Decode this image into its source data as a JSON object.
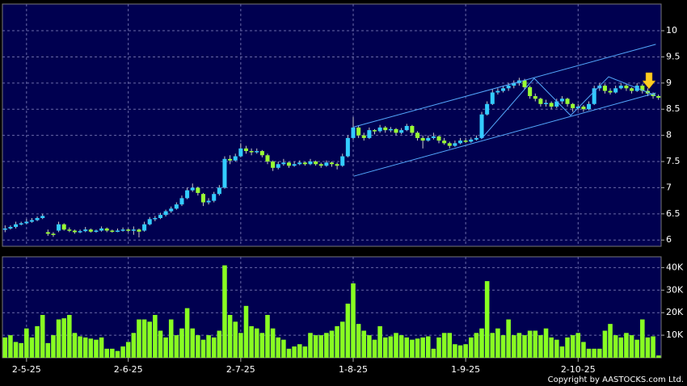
{
  "chart_data": [
    {
      "type": "candlestick",
      "categories": [
        null,
        null,
        null,
        null,
        "2-5-25",
        null,
        null,
        null,
        null,
        null,
        null,
        null,
        null,
        null,
        null,
        null,
        null,
        null,
        null,
        null,
        null,
        null,
        null,
        "2-6-25",
        null,
        null,
        null,
        null,
        null,
        null,
        null,
        null,
        null,
        null,
        null,
        null,
        null,
        null,
        null,
        null,
        null,
        null,
        null,
        null,
        "2-7-25",
        null,
        null,
        null,
        null,
        null,
        null,
        null,
        null,
        null,
        null,
        null,
        null,
        null,
        null,
        null,
        null,
        null,
        null,
        null,
        null,
        "1-8-25",
        null,
        null,
        null,
        null,
        null,
        null,
        null,
        null,
        null,
        null,
        null,
        null,
        null,
        null,
        null,
        null,
        null,
        null,
        null,
        null,
        "1-9-25",
        null,
        null,
        null,
        null,
        null,
        null,
        null,
        null,
        null,
        null,
        null,
        null,
        null,
        null,
        null,
        null,
        null,
        null,
        null,
        null,
        "2-10-25",
        null,
        null,
        null,
        null,
        null,
        null,
        null,
        null,
        null,
        null,
        null,
        null,
        null,
        null,
        null
      ],
      "candles": [
        [
          6.2,
          6.28,
          6.15,
          6.22
        ],
        [
          6.22,
          6.28,
          6.2,
          6.25
        ],
        [
          6.25,
          6.35,
          6.22,
          6.3
        ],
        [
          6.3,
          6.35,
          6.28,
          6.32
        ],
        [
          6.32,
          6.4,
          6.3,
          6.35
        ],
        [
          6.35,
          6.42,
          6.33,
          6.38
        ],
        [
          6.38,
          6.45,
          6.36,
          6.42
        ],
        [
          6.42,
          6.5,
          6.4,
          6.46
        ],
        [
          6.15,
          6.2,
          6.08,
          6.12
        ],
        [
          6.12,
          6.15,
          6.06,
          6.1
        ],
        [
          6.18,
          6.35,
          6.15,
          6.3
        ],
        [
          6.3,
          6.32,
          6.18,
          6.2
        ],
        [
          6.2,
          6.24,
          6.15,
          6.18
        ],
        [
          6.18,
          6.2,
          6.12,
          6.15
        ],
        [
          6.15,
          6.2,
          6.13,
          6.17
        ],
        [
          6.17,
          6.25,
          6.15,
          6.2
        ],
        [
          6.2,
          6.22,
          6.14,
          6.16
        ],
        [
          6.16,
          6.2,
          6.14,
          6.18
        ],
        [
          6.18,
          6.26,
          6.16,
          6.22
        ],
        [
          6.22,
          6.24,
          6.15,
          6.18
        ],
        [
          6.18,
          6.2,
          6.14,
          6.17
        ],
        [
          6.17,
          6.22,
          6.15,
          6.18
        ],
        [
          6.18,
          6.24,
          6.16,
          6.2
        ],
        [
          6.2,
          6.22,
          6.15,
          6.18
        ],
        [
          6.18,
          6.26,
          6.1,
          6.2
        ],
        [
          6.2,
          6.22,
          6.05,
          6.16
        ],
        [
          6.18,
          6.35,
          6.16,
          6.3
        ],
        [
          6.3,
          6.44,
          6.28,
          6.4
        ],
        [
          6.4,
          6.46,
          6.36,
          6.42
        ],
        [
          6.42,
          6.52,
          6.4,
          6.48
        ],
        [
          6.48,
          6.58,
          6.45,
          6.55
        ],
        [
          6.55,
          6.64,
          6.52,
          6.6
        ],
        [
          6.6,
          6.72,
          6.58,
          6.68
        ],
        [
          6.68,
          6.85,
          6.65,
          6.8
        ],
        [
          6.8,
          7.0,
          6.78,
          6.95
        ],
        [
          6.95,
          7.08,
          6.92,
          7.0
        ],
        [
          7.0,
          7.02,
          6.85,
          6.9
        ],
        [
          6.88,
          6.9,
          6.65,
          6.72
        ],
        [
          6.72,
          6.8,
          6.68,
          6.75
        ],
        [
          6.75,
          6.92,
          6.72,
          6.88
        ],
        [
          6.88,
          7.05,
          6.85,
          7.0
        ],
        [
          7.0,
          7.6,
          6.98,
          7.55
        ],
        [
          7.55,
          7.62,
          7.45,
          7.52
        ],
        [
          7.52,
          7.65,
          7.5,
          7.6
        ],
        [
          7.6,
          7.85,
          7.58,
          7.75
        ],
        [
          7.75,
          7.8,
          7.65,
          7.7
        ],
        [
          7.7,
          7.75,
          7.62,
          7.68
        ],
        [
          7.68,
          7.75,
          7.65,
          7.7
        ],
        [
          7.7,
          7.72,
          7.58,
          7.62
        ],
        [
          7.62,
          7.65,
          7.45,
          7.5
        ],
        [
          7.5,
          7.52,
          7.32,
          7.38
        ],
        [
          7.38,
          7.5,
          7.35,
          7.45
        ],
        [
          7.45,
          7.55,
          7.42,
          7.48
        ],
        [
          7.48,
          7.5,
          7.38,
          7.42
        ],
        [
          7.42,
          7.5,
          7.4,
          7.45
        ],
        [
          7.45,
          7.52,
          7.43,
          7.48
        ],
        [
          7.48,
          7.5,
          7.42,
          7.45
        ],
        [
          7.45,
          7.55,
          7.43,
          7.5
        ],
        [
          7.5,
          7.52,
          7.42,
          7.45
        ],
        [
          7.45,
          7.48,
          7.38,
          7.42
        ],
        [
          7.42,
          7.52,
          7.4,
          7.48
        ],
        [
          7.48,
          7.5,
          7.4,
          7.45
        ],
        [
          7.45,
          7.48,
          7.35,
          7.42
        ],
        [
          7.42,
          7.65,
          7.4,
          7.6
        ],
        [
          7.6,
          8.0,
          7.58,
          7.95
        ],
        [
          7.95,
          8.35,
          7.92,
          8.15
        ],
        [
          8.15,
          8.18,
          7.95,
          8.0
        ],
        [
          8.0,
          8.05,
          7.9,
          7.95
        ],
        [
          7.95,
          8.15,
          7.93,
          8.1
        ],
        [
          8.1,
          8.12,
          8.02,
          8.08
        ],
        [
          8.08,
          8.2,
          8.05,
          8.15
        ],
        [
          8.15,
          8.18,
          8.05,
          8.1
        ],
        [
          8.1,
          8.16,
          8.06,
          8.12
        ],
        [
          8.12,
          8.14,
          8.0,
          8.05
        ],
        [
          8.05,
          8.14,
          8.02,
          8.1
        ],
        [
          8.1,
          8.22,
          8.08,
          8.18
        ],
        [
          8.18,
          8.2,
          8.0,
          8.05
        ],
        [
          8.05,
          8.08,
          7.9,
          7.95
        ],
        [
          7.95,
          8.0,
          7.75,
          7.9
        ],
        [
          7.9,
          8.0,
          7.88,
          7.95
        ],
        [
          7.95,
          8.05,
          7.92,
          7.98
        ],
        [
          7.98,
          8.0,
          7.85,
          7.9
        ],
        [
          7.9,
          7.95,
          7.82,
          7.85
        ],
        [
          7.85,
          7.88,
          7.75,
          7.8
        ],
        [
          7.8,
          7.9,
          7.78,
          7.85
        ],
        [
          7.85,
          7.95,
          7.83,
          7.9
        ],
        [
          7.9,
          7.95,
          7.85,
          7.88
        ],
        [
          7.88,
          7.96,
          7.86,
          7.92
        ],
        [
          7.92,
          8.0,
          7.9,
          7.95
        ],
        [
          7.95,
          8.45,
          7.93,
          8.4
        ],
        [
          8.4,
          8.65,
          8.38,
          8.6
        ],
        [
          8.6,
          8.88,
          8.58,
          8.82
        ],
        [
          8.82,
          8.9,
          8.78,
          8.85
        ],
        [
          8.85,
          8.95,
          8.82,
          8.9
        ],
        [
          8.9,
          9.0,
          8.85,
          8.95
        ],
        [
          8.95,
          9.05,
          8.9,
          9.0
        ],
        [
          9.0,
          9.1,
          8.95,
          9.05
        ],
        [
          9.05,
          9.08,
          8.88,
          8.92
        ],
        [
          8.92,
          8.95,
          8.7,
          8.75
        ],
        [
          8.75,
          8.8,
          8.65,
          8.7
        ],
        [
          8.7,
          8.72,
          8.55,
          8.6
        ],
        [
          8.6,
          8.68,
          8.55,
          8.62
        ],
        [
          8.62,
          8.65,
          8.5,
          8.55
        ],
        [
          8.55,
          8.7,
          8.52,
          8.65
        ],
        [
          8.65,
          8.75,
          8.6,
          8.7
        ],
        [
          8.7,
          8.72,
          8.55,
          8.6
        ],
        [
          8.6,
          8.62,
          8.45,
          8.52
        ],
        [
          8.52,
          8.6,
          8.48,
          8.55
        ],
        [
          8.55,
          8.58,
          8.45,
          8.5
        ],
        [
          8.5,
          8.65,
          8.48,
          8.6
        ],
        [
          8.6,
          8.95,
          8.58,
          8.9
        ],
        [
          8.9,
          9.0,
          8.85,
          8.95
        ],
        [
          8.95,
          8.98,
          8.8,
          8.85
        ],
        [
          8.85,
          8.9,
          8.78,
          8.82
        ],
        [
          8.82,
          8.95,
          8.8,
          8.9
        ],
        [
          8.9,
          9.0,
          8.88,
          8.95
        ],
        [
          8.95,
          8.98,
          8.85,
          8.9
        ],
        [
          8.9,
          8.92,
          8.8,
          8.85
        ],
        [
          8.85,
          9.0,
          8.83,
          8.95
        ],
        [
          8.95,
          8.98,
          8.8,
          8.85
        ],
        [
          8.85,
          8.9,
          8.75,
          8.8
        ],
        [
          8.8,
          8.82,
          8.7,
          8.75
        ],
        [
          8.75,
          8.78,
          8.68,
          8.72
        ]
      ],
      "up_color": "#33ccff",
      "down_color": "#99ff33",
      "line_color": "#55aaff",
      "trendlines": [
        {
          "x": [
            65.1,
            121.5
          ],
          "y": [
            8.16,
            9.74
          ]
        },
        {
          "x": [
            65.1,
            121.5
          ],
          "y": [
            7.22,
            8.81
          ]
        },
        {
          "x": [
            88.9,
            98.8,
            105.6,
            112.7,
            121.5
          ],
          "y": [
            7.93,
            9.09,
            8.38,
            9.12,
            8.76
          ]
        }
      ],
      "ylim": [
        5.88,
        10.51
      ],
      "yticks": [
        6,
        6.5,
        7,
        7.5,
        8,
        8.5,
        9,
        9.5,
        10
      ],
      "grid": true
    },
    {
      "type": "bar",
      "values": [
        9000,
        10000,
        7000,
        6500,
        13000,
        9000,
        14000,
        19000,
        6500,
        10000,
        17000,
        17500,
        19000,
        11000,
        9500,
        9000,
        8500,
        8000,
        9000,
        4000,
        4000,
        3000,
        5000,
        7000,
        11000,
        17000,
        17000,
        16000,
        19000,
        12000,
        9000,
        17000,
        10000,
        13000,
        22000,
        13000,
        10000,
        8000,
        10000,
        9000,
        12000,
        41000,
        19000,
        16000,
        11000,
        23000,
        14000,
        13000,
        11000,
        19000,
        13000,
        9000,
        8000,
        4000,
        5000,
        6000,
        5000,
        11000,
        10000,
        10000,
        11000,
        12000,
        14000,
        16000,
        24000,
        33000,
        15000,
        12000,
        10000,
        8000,
        14000,
        9000,
        9500,
        11000,
        10000,
        9000,
        8000,
        8500,
        9000,
        9500,
        4000,
        9000,
        11000,
        11000,
        6000,
        5500,
        6000,
        9000,
        11000,
        13000,
        34000,
        11000,
        13000,
        10000,
        17000,
        10000,
        11000,
        10000,
        12000,
        12000,
        10000,
        13000,
        9000,
        8000,
        5000,
        9000,
        10000,
        11000,
        7000,
        4000,
        4000,
        4000,
        12000,
        15000,
        10000,
        9000,
        11000,
        10000,
        8000,
        17000,
        9000,
        9500,
        1000
      ],
      "color": "#88ff22",
      "ylim": [
        0,
        44800
      ],
      "yticks": [
        {
          "value": 10000,
          "label": "10K"
        },
        {
          "value": 20000,
          "label": "20K"
        },
        {
          "value": 30000,
          "label": "30K"
        },
        {
          "value": 40000,
          "label": "40K"
        }
      ],
      "grid": true
    }
  ],
  "copyright": "Copyright by AASTOCKS.com Ltd."
}
